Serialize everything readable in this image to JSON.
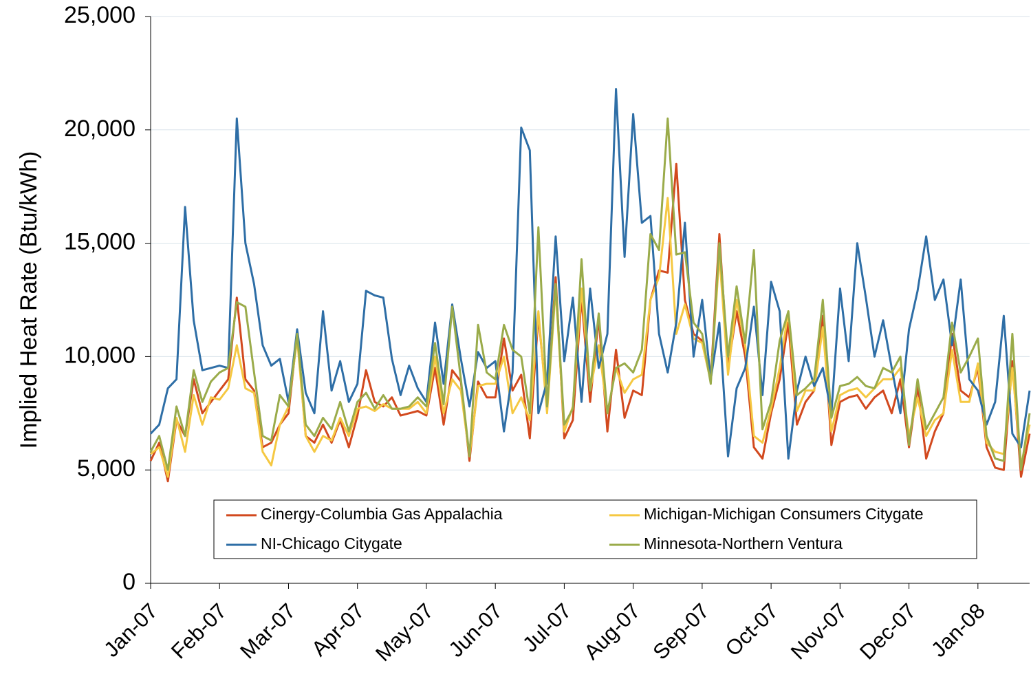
{
  "chart_data": {
    "type": "line",
    "y_label": "Implied Heat Rate (Btu/kWh)",
    "categories": [
      "Jan-07",
      null,
      null,
      null,
      null,
      null,
      null,
      null,
      "Feb-07",
      null,
      null,
      null,
      null,
      null,
      null,
      null,
      "Mar-07",
      null,
      null,
      null,
      null,
      null,
      null,
      null,
      "Apr-07",
      null,
      null,
      null,
      null,
      null,
      null,
      null,
      "May-07",
      null,
      null,
      null,
      null,
      null,
      null,
      null,
      "Jun-07",
      null,
      null,
      null,
      null,
      null,
      null,
      null,
      "Jul-07",
      null,
      null,
      null,
      null,
      null,
      null,
      null,
      "Aug-07",
      null,
      null,
      null,
      null,
      null,
      null,
      null,
      "Sep-07",
      null,
      null,
      null,
      null,
      null,
      null,
      null,
      "Oct-07",
      null,
      null,
      null,
      null,
      null,
      null,
      null,
      "Nov-07",
      null,
      null,
      null,
      null,
      null,
      null,
      null,
      "Dec-07",
      null,
      null,
      null,
      null,
      null,
      null,
      null,
      "Jan-08",
      null,
      null,
      null,
      null,
      null,
      null
    ],
    "ylim": [
      0,
      25000
    ],
    "yticks": [
      0,
      {
        "value": 5000,
        "label": "5,000"
      },
      {
        "value": 10000,
        "label": "10,000"
      },
      {
        "value": 15000,
        "label": "15,000"
      },
      {
        "value": 20000,
        "label": "20,000"
      },
      {
        "value": 25000,
        "label": "25,000"
      }
    ],
    "grid": true,
    "legend": "lower center",
    "series": [
      {
        "name": "Cinergy-Columbia Gas Appalachia",
        "color": "#d2491e",
        "values": [
          5400,
          6200,
          4500,
          7200,
          6500,
          9000,
          7500,
          8000,
          8500,
          9000,
          12600,
          9000,
          8500,
          6000,
          6200,
          7000,
          7500,
          11000,
          6500,
          6200,
          7000,
          6200,
          7200,
          6000,
          7400,
          9400,
          8000,
          7800,
          8200,
          7400,
          7500,
          7600,
          7400,
          9500,
          7000,
          9400,
          8900,
          5400,
          8900,
          8200,
          8200,
          10800,
          8500,
          9200,
          6400,
          11800,
          7800,
          13500,
          6400,
          7200,
          12600,
          8000,
          11700,
          6700,
          10300,
          7300,
          8500,
          8300,
          12500,
          13800,
          13700,
          18500,
          12500,
          11000,
          10700,
          9000,
          15400,
          9500,
          12000,
          10000,
          6000,
          5500,
          7500,
          9000,
          11500,
          7000,
          8000,
          8500,
          11800,
          6100,
          8000,
          8200,
          8300,
          7700,
          8200,
          8500,
          7500,
          9000,
          6000,
          8700,
          5500,
          6700,
          7500,
          11000,
          8500,
          8200,
          9500,
          6000,
          5100,
          5000,
          9800,
          4700,
          6600
        ]
      },
      {
        "name": "Michigan-Michigan Consumers Citygate",
        "color": "#f5c842",
        "values": [
          5700,
          6000,
          4700,
          7300,
          5800,
          8300,
          7000,
          8200,
          8100,
          8600,
          10500,
          8600,
          8400,
          5800,
          5200,
          7000,
          7800,
          10800,
          6500,
          5800,
          6500,
          6300,
          7300,
          6500,
          7700,
          7800,
          7600,
          7900,
          7700,
          7700,
          7700,
          8000,
          7500,
          10000,
          7500,
          9000,
          8500,
          5600,
          8700,
          8800,
          8800,
          10000,
          7500,
          8200,
          7200,
          12000,
          7500,
          13000,
          6700,
          7800,
          13000,
          8500,
          10500,
          7500,
          9500,
          8400,
          9000,
          9200,
          12500,
          13500,
          17000,
          11000,
          12300,
          10800,
          10600,
          8900,
          14500,
          9200,
          12500,
          10500,
          6500,
          6200,
          7700,
          9500,
          12000,
          7600,
          8500,
          8500,
          11300,
          6700,
          8300,
          8500,
          8600,
          8200,
          8600,
          9000,
          9000,
          9500,
          6500,
          8200,
          6500,
          7200,
          7500,
          10300,
          8000,
          8000,
          9700,
          6200,
          5800,
          5700,
          9500,
          5200,
          7000
        ]
      },
      {
        "name": "NI-Chicago Citygate",
        "color": "#2e6ea6",
        "values": [
          6600,
          7000,
          8600,
          9000,
          16600,
          11600,
          9400,
          9500,
          9600,
          9500,
          20500,
          15000,
          13200,
          10500,
          9600,
          9900,
          8000,
          11200,
          8400,
          7500,
          12000,
          8500,
          9800,
          8000,
          8800,
          12900,
          12700,
          12600,
          9900,
          8300,
          9600,
          8600,
          8000,
          11500,
          8800,
          12300,
          9900,
          7800,
          10200,
          9500,
          9800,
          6700,
          9300,
          20100,
          19100,
          7500,
          8900,
          15300,
          9800,
          12600,
          8000,
          13000,
          9500,
          11000,
          21800,
          14400,
          20700,
          15900,
          16200,
          11000,
          9300,
          11500,
          15900,
          10000,
          12500,
          9000,
          11500,
          5600,
          8600,
          9500,
          12200,
          8300,
          13300,
          12000,
          5500,
          8500,
          10000,
          8700,
          9500,
          7500,
          13000,
          9800,
          15000,
          12600,
          10000,
          11600,
          9500,
          7500,
          11200,
          12900,
          15300,
          12500,
          13400,
          10500,
          13400,
          9000,
          8500,
          7000,
          8000,
          11800,
          6600,
          6000,
          8500
        ]
      },
      {
        "name": "Minnesota-Northern Ventura",
        "color": "#9aab4a",
        "values": [
          5800,
          6500,
          5000,
          7800,
          6500,
          9400,
          8000,
          8900,
          9300,
          9500,
          12400,
          12200,
          9300,
          6500,
          6300,
          8300,
          7800,
          11000,
          7000,
          6500,
          7300,
          6800,
          8000,
          6700,
          8000,
          8400,
          7700,
          8300,
          7700,
          7700,
          7800,
          8200,
          7800,
          10600,
          7900,
          12200,
          9000,
          5600,
          11400,
          9300,
          9000,
          11400,
          10300,
          10000,
          7500,
          15700,
          7800,
          13200,
          7000,
          7700,
          14300,
          8500,
          11900,
          7500,
          9500,
          9700,
          9300,
          10300,
          15400,
          14700,
          20500,
          14500,
          14600,
          11500,
          11000,
          8800,
          15000,
          10000,
          13100,
          10600,
          14700,
          6800,
          8000,
          10700,
          12000,
          8300,
          8600,
          9000,
          12500,
          7300,
          8700,
          8800,
          9100,
          8700,
          8600,
          9500,
          9300,
          10000,
          6100,
          9000,
          6800,
          7500,
          8200,
          11500,
          9300,
          10000,
          10800,
          6500,
          5500,
          5400,
          11000,
          5000,
          7500
        ]
      }
    ]
  }
}
